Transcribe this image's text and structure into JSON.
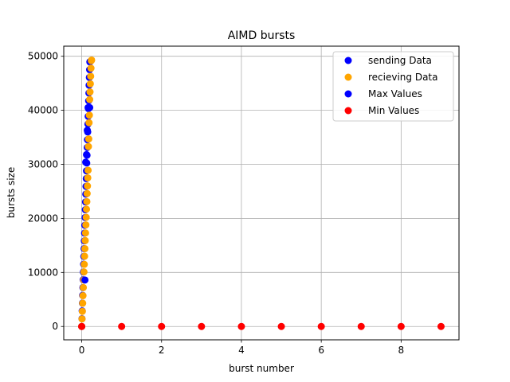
{
  "chart_data": {
    "type": "scatter",
    "title": "AIMD bursts",
    "xlabel": "burst number",
    "ylabel": "bursts size",
    "xlim": [
      -0.45,
      9.45
    ],
    "ylim": [
      -2470,
      51870
    ],
    "xticks": [
      0,
      2,
      4,
      6,
      8
    ],
    "yticks": [
      0,
      10000,
      20000,
      30000,
      40000,
      50000
    ],
    "grid": true,
    "legend_position": "upper-right",
    "series": [
      {
        "name": "sending Data",
        "color": "#0000ff",
        "x": [
          0.0,
          0.006,
          0.012,
          0.018,
          0.024,
          0.03,
          0.036,
          0.042,
          0.048,
          0.054,
          0.06,
          0.066,
          0.072,
          0.078,
          0.084,
          0.09,
          0.096,
          0.102,
          0.108,
          0.114,
          0.12,
          0.126,
          0.132,
          0.138,
          0.144,
          0.15,
          0.156,
          0.162,
          0.168,
          0.174,
          0.18,
          0.186,
          0.192,
          0.198,
          0.204,
          0.21
        ],
        "y": [
          0,
          1440,
          2880,
          4320,
          5760,
          7200,
          8640,
          10080,
          11520,
          12960,
          14400,
          15840,
          17280,
          18720,
          20160,
          21600,
          23040,
          24480,
          25920,
          27360,
          28800,
          30240,
          31680,
          33120,
          34560,
          36000,
          37440,
          38880,
          40320,
          41760,
          43200,
          44640,
          46080,
          47520,
          48960,
          49000
        ]
      },
      {
        "name": "recieving Data",
        "color": "#ffa500",
        "x": [
          0.0,
          0.008,
          0.016,
          0.024,
          0.032,
          0.04,
          0.048,
          0.056,
          0.064,
          0.072,
          0.08,
          0.088,
          0.096,
          0.104,
          0.112,
          0.12,
          0.128,
          0.136,
          0.144,
          0.152,
          0.16,
          0.168,
          0.176,
          0.184,
          0.192,
          0.2,
          0.208,
          0.216,
          0.224,
          0.232,
          0.24,
          0.248
        ],
        "y": [
          0,
          1400,
          2800,
          4300,
          5700,
          7200,
          8600,
          10100,
          11500,
          13000,
          14400,
          15900,
          17300,
          18800,
          20200,
          21700,
          23100,
          24600,
          26000,
          27500,
          28900,
          33300,
          34700,
          37700,
          39100,
          42000,
          43400,
          44900,
          46300,
          47800,
          49200,
          49300
        ]
      },
      {
        "name": "Max Values",
        "color": "#0000ff",
        "x": [
          0.08,
          0.1,
          0.12,
          0.14,
          0.16,
          0.18,
          0.2
        ],
        "y": [
          8600,
          30400,
          31800,
          36300,
          40500,
          40500,
          40500
        ]
      },
      {
        "name": "Min Values",
        "color": "#ff0000",
        "x": [
          0,
          1,
          2,
          3,
          4,
          5,
          6,
          7,
          8,
          9
        ],
        "y": [
          0,
          0,
          0,
          0,
          0,
          0,
          0,
          0,
          0,
          0
        ]
      }
    ]
  }
}
